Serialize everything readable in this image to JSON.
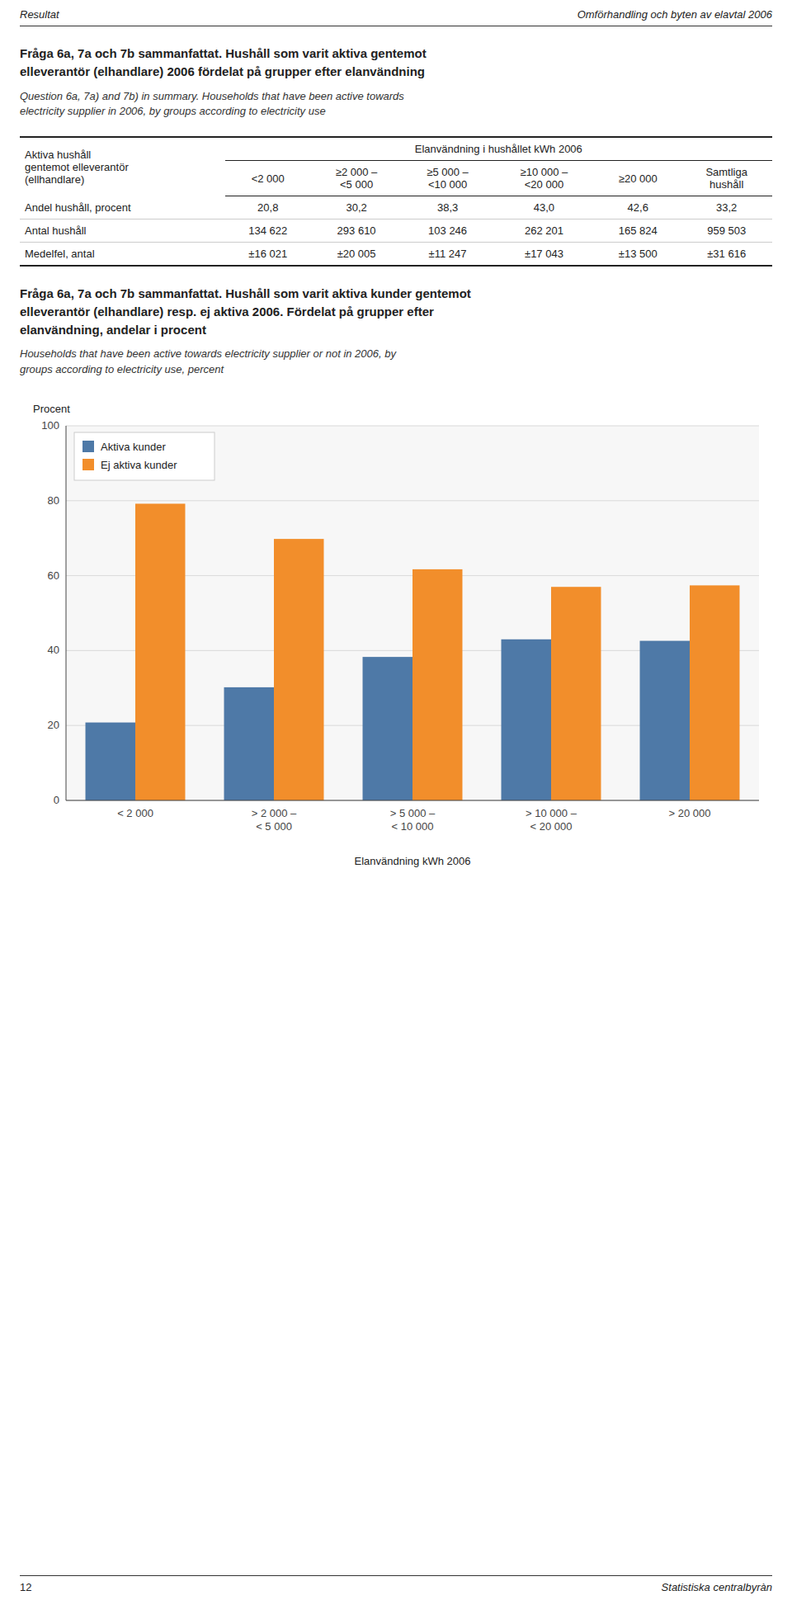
{
  "page": {
    "header_left": "Resultat",
    "header_right": "Omförhandling och byten av elavtal 2006",
    "footer_left": "12",
    "footer_right": "Statistiska centralbyràn"
  },
  "chart_data": [
    {
      "type": "table",
      "title": "Fråga 6a, 7a och 7b sammanfattat. Hushåll som varit aktiva gentemot\nelleverantör (elhandlare) 2006 fördelat på grupper efter elanvändning",
      "subtitle": "Question 6a, 7a) and 7b) in summary. Households that have been active towards\nelectricity supplier in 2006, by groups according to electricity use",
      "row_header": "Aktiva hushåll\ngentemot elleverantör\n(ellhandlare)",
      "span_header": "Elanvändning i hushållet kWh 2006",
      "columns": [
        "<2 000",
        "≥2 000 –\n<5 000",
        "≥5 000 –\n<10 000",
        "≥10 000 –\n<20 000",
        "≥20 000",
        "Samtliga\nhushåll"
      ],
      "rows": [
        {
          "label": "Andel hushåll, procent",
          "values": [
            "20,8",
            "30,2",
            "38,3",
            "43,0",
            "42,6",
            "33,2"
          ]
        },
        {
          "label": "Antal hushåll",
          "values": [
            "134 622",
            "293 610",
            "103 246",
            "262 201",
            "165 824",
            "959 503"
          ]
        },
        {
          "label": "Medelfel, antal",
          "values": [
            "±16 021",
            "±20 005",
            "±11 247",
            "±17 043",
            "±13 500",
            "±31 616"
          ]
        }
      ]
    },
    {
      "type": "bar",
      "title": "Fråga 6a, 7a och 7b sammanfattat. Hushåll som varit aktiva kunder gentemot\nelleverantör (elhandlare) resp. ej aktiva 2006. Fördelat på grupper efter\nelanvändning, andelar i procent",
      "subtitle": "Households that have been active towards electricity supplier or not in 2006, by\ngroups according to electricity use, percent",
      "ylabel": "Procent",
      "xlabel": "Elanvändning kWh 2006",
      "categories": [
        "< 2 000",
        "> 2 000 –\n< 5 000",
        "> 5 000 –\n< 10 000",
        "> 10 000 –\n< 20 000",
        "> 20 000"
      ],
      "series": [
        {
          "name": "Aktiva kunder",
          "color": "#4e79a7",
          "values": [
            20.8,
            30.2,
            38.3,
            43.0,
            42.6
          ]
        },
        {
          "name": "Ej aktiva kunder",
          "color": "#f28e2b",
          "values": [
            79.2,
            69.8,
            61.7,
            57.0,
            57.4
          ]
        }
      ],
      "ylim": [
        0,
        100
      ],
      "yticks": [
        0,
        20,
        40,
        60,
        80,
        100
      ],
      "grid": true,
      "legend": "upper left"
    }
  ]
}
